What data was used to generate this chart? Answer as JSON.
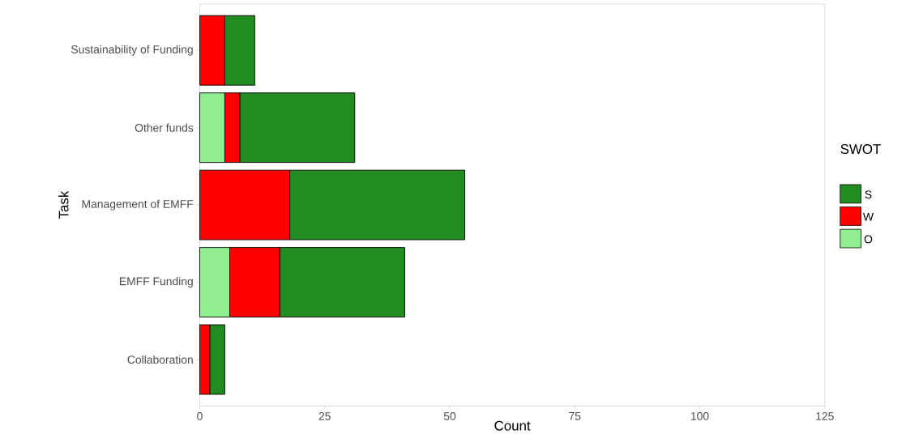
{
  "chart_data": {
    "type": "bar",
    "orientation": "horizontal",
    "stacked": true,
    "xlabel": "Count",
    "ylabel": "Task",
    "legend_title": "SWOT",
    "legend": "right",
    "grid": false,
    "categories": [
      "Sustainability of Funding",
      "Other funds",
      "Management of EMFF",
      "EMFF Funding",
      "Collaboration"
    ],
    "xlim": [
      0,
      125
    ],
    "xticks": [
      0,
      25,
      50,
      75,
      100,
      125
    ],
    "series": [
      {
        "name": "O",
        "color": "#90ee90",
        "values": [
          0,
          5,
          0,
          6,
          0
        ]
      },
      {
        "name": "W",
        "color": "#ff0000",
        "values": [
          5,
          3,
          18,
          10,
          2
        ]
      },
      {
        "name": "S",
        "color": "#228b22",
        "values": [
          6,
          23,
          35,
          25,
          3
        ]
      }
    ]
  }
}
